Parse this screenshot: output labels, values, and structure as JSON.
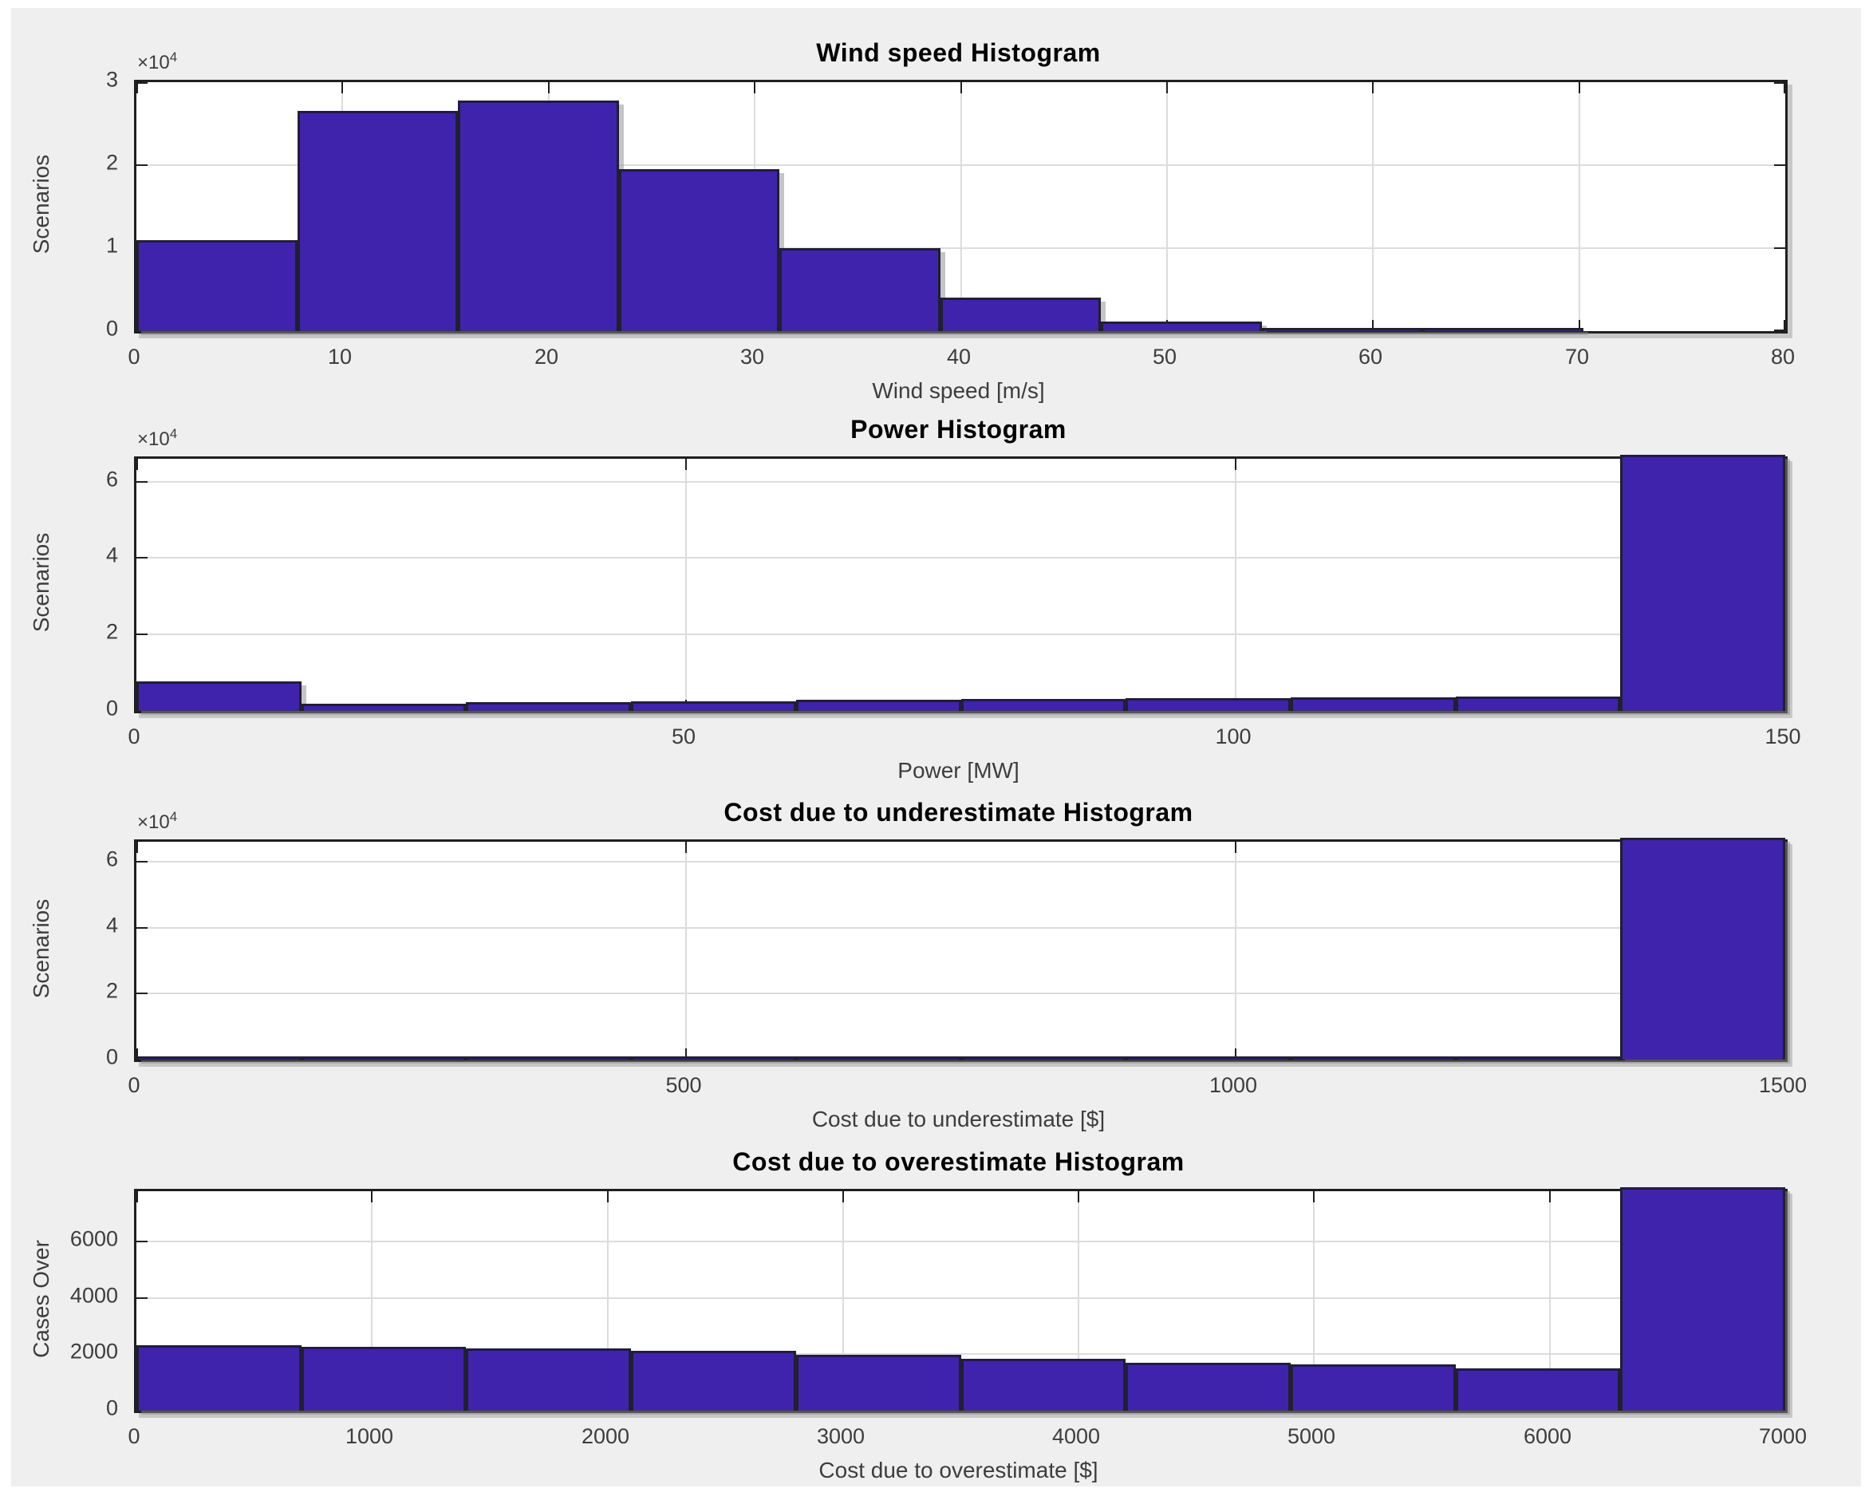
{
  "figure": {
    "background_color": "#EFEFEF",
    "plot_background_color": "#FFFFFF",
    "bar_fill_color": "#4023AD",
    "bar_edge_color": "#20202E",
    "gridline_color": "#DCDCDC",
    "axis_color": "#1F1F1F",
    "tick_label_color": "#3D3D3D",
    "title_color": "#000000"
  },
  "chart_data": [
    {
      "type": "bar",
      "subtype": "histogram",
      "title": "Wind speed Histogram",
      "xlabel": "Wind speed [m/s]",
      "ylabel": "Scenarios",
      "exponent": {
        "base": "×10",
        "power": "4"
      },
      "grid": true,
      "legend": "none",
      "xlim": [
        0,
        80
      ],
      "ylim": [
        0,
        30000
      ],
      "bin_start": 0,
      "bin_width": 7.8,
      "values": [
        11000,
        26500,
        27800,
        19500,
        10000,
        4000,
        1200,
        300,
        60,
        0
      ],
      "x_ticks": [
        0,
        10,
        20,
        30,
        40,
        50,
        60,
        70,
        80
      ],
      "x_tick_labels": [
        "0",
        "10",
        "20",
        "30",
        "40",
        "50",
        "60",
        "70",
        "80"
      ],
      "y_ticks": [
        0,
        10000,
        20000,
        30000
      ],
      "y_tick_labels": [
        "0",
        "1",
        "2",
        "3"
      ]
    },
    {
      "type": "bar",
      "subtype": "histogram",
      "title": "Power Histogram",
      "xlabel": "Power [MW]",
      "ylabel": "Scenarios",
      "exponent": {
        "base": "×10",
        "power": "4"
      },
      "grid": true,
      "legend": "none",
      "xlim": [
        0,
        150
      ],
      "ylim": [
        0,
        66000
      ],
      "bin_start": 0,
      "bin_width": 15,
      "values": [
        7800,
        1800,
        2200,
        2600,
        2900,
        3100,
        3300,
        3500,
        3700,
        66000
      ],
      "clipped_last_bin": true,
      "x_ticks": [
        0,
        50,
        100,
        150
      ],
      "x_tick_labels": [
        "0",
        "50",
        "100",
        "150"
      ],
      "y_ticks": [
        0,
        20000,
        40000,
        60000
      ],
      "y_tick_labels": [
        "0",
        "2",
        "4",
        "6"
      ]
    },
    {
      "type": "bar",
      "subtype": "histogram",
      "title": "Cost due to underestimate Histogram",
      "xlabel": "Cost due to underestimate [$]",
      "ylabel": "Scenarios",
      "exponent": {
        "base": "×10",
        "power": "4"
      },
      "grid": true,
      "legend": "none",
      "xlim": [
        0,
        1500
      ],
      "ylim": [
        0,
        66000
      ],
      "bin_start": 0,
      "bin_width": 150,
      "values": [
        500,
        520,
        540,
        560,
        580,
        600,
        620,
        640,
        660,
        66000
      ],
      "clipped_last_bin": true,
      "x_ticks": [
        0,
        500,
        1000,
        1500
      ],
      "x_tick_labels": [
        "0",
        "500",
        "1000",
        "1500"
      ],
      "y_ticks": [
        0,
        20000,
        40000,
        60000
      ],
      "y_tick_labels": [
        "0",
        "2",
        "4",
        "6"
      ]
    },
    {
      "type": "bar",
      "subtype": "histogram",
      "title": "Cost due to overestimate Histogram",
      "xlabel": "Cost due to overestimate [$]",
      "ylabel": "Cases Over",
      "exponent": null,
      "grid": true,
      "legend": "none",
      "xlim": [
        0,
        7000
      ],
      "ylim": [
        0,
        7800
      ],
      "bin_start": 0,
      "bin_width": 700,
      "values": [
        2330,
        2280,
        2200,
        2120,
        1980,
        1850,
        1700,
        1650,
        1500,
        7800
      ],
      "clipped_last_bin": true,
      "x_ticks": [
        0,
        1000,
        2000,
        3000,
        4000,
        5000,
        6000,
        7000
      ],
      "x_tick_labels": [
        "0",
        "1000",
        "2000",
        "3000",
        "4000",
        "5000",
        "6000",
        "7000"
      ],
      "y_ticks": [
        0,
        2000,
        4000,
        6000
      ],
      "y_tick_labels": [
        "0",
        "2000",
        "4000",
        "6000"
      ]
    }
  ]
}
